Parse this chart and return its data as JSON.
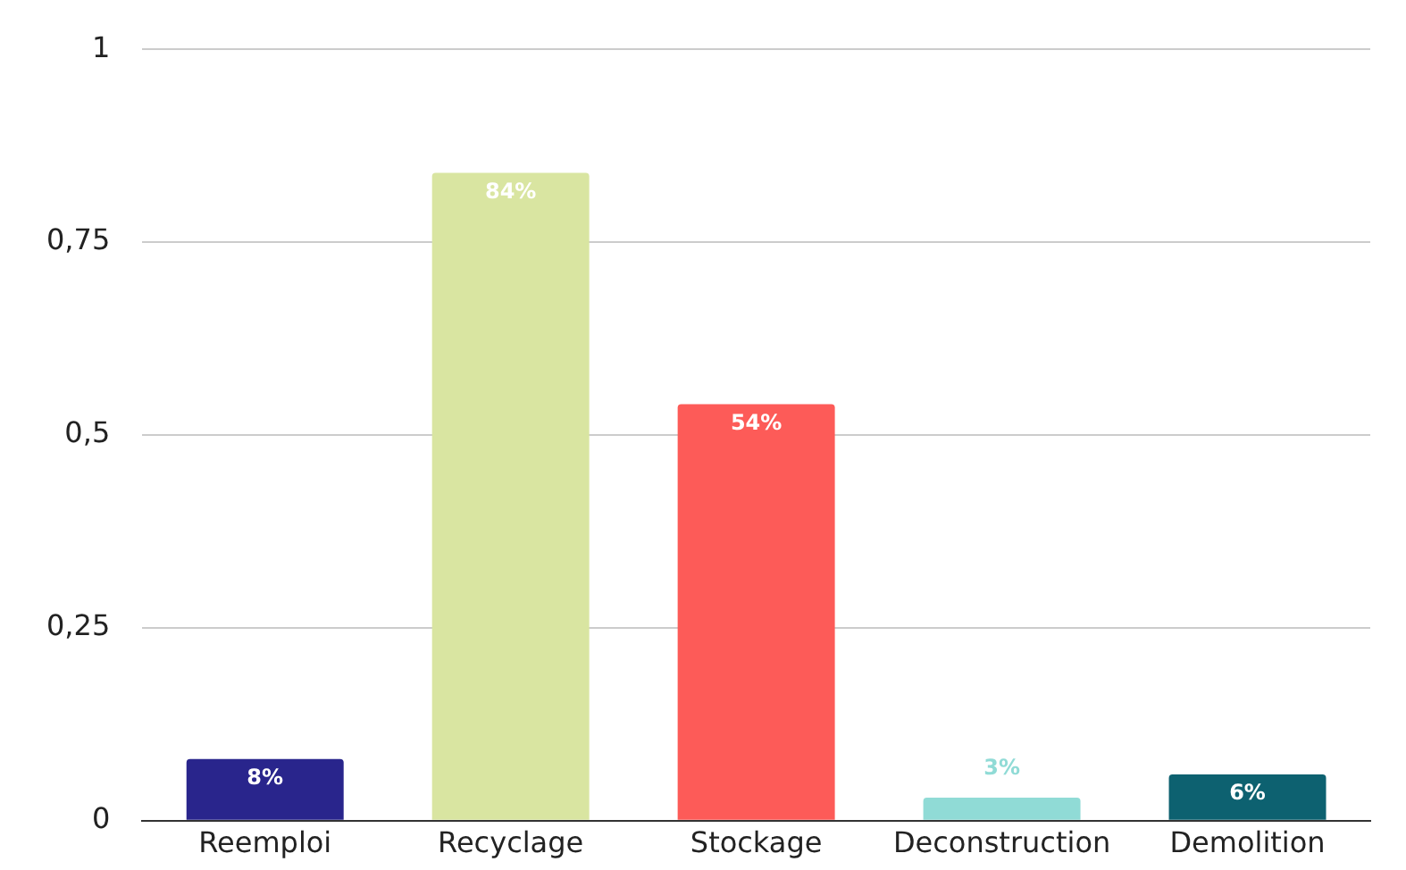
{
  "chart_data": {
    "type": "bar",
    "categories": [
      "Reemploi",
      "Recyclage",
      "Stockage",
      "Deconstruction",
      "Demolition"
    ],
    "values": [
      0.08,
      0.84,
      0.54,
      0.03,
      0.06
    ],
    "colors": [
      "#29258c",
      "#d9e5a1",
      "#fd5b58",
      "#90dbd6",
      "#0d6170"
    ],
    "value_labels": [
      "8%",
      "84%",
      "54%",
      "3%",
      "6%"
    ],
    "ylim": [
      0,
      1
    ],
    "yticks": [
      0,
      {
        "value": 0.25,
        "label": "0,25"
      },
      {
        "value": 0.5,
        "label": "0,5"
      },
      {
        "value": 0.75,
        "label": "0,75"
      },
      1
    ],
    "grid": "y",
    "legend": false
  }
}
